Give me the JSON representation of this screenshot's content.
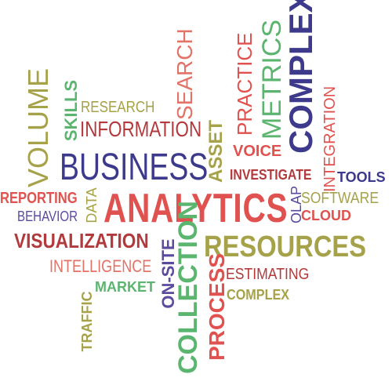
{
  "words": {
    "analytics": "ANALYTICS",
    "business": "BUSINESS",
    "complex_large": "COMPLEX",
    "complex_small": "COMPLEX",
    "resources": "RESOURCES",
    "visualization": "VISUALIZATION",
    "collection": "COLLECTION",
    "information": "INFORMATION",
    "metrics": "METRICS",
    "volume": "VOLUME",
    "practice": "PRACTICE",
    "search": "SEARCH",
    "process": "PROCESS",
    "intelligence": "INTELLIGENCE",
    "asset": "ASSET",
    "voice": "VOICE",
    "investigate": "INVESTIGATE",
    "integration": "INTEGRATION",
    "tools": "TOOLS",
    "software": "SOFTWARE",
    "cloud": "CLOUD",
    "olap": "OLAP",
    "reporting": "REPORTING",
    "behavior": "BEHAVIOR",
    "data": "DATA",
    "research": "RESEARCH",
    "skills": "SKILLS",
    "on_site": "ON-SITE",
    "estimating": "ESTIMATING",
    "market": "MARKET",
    "traffic": "TRAFFIC"
  },
  "colors": {
    "red": "#E0524F",
    "crimson": "#B23A3D",
    "navy": "#3D3A8C",
    "olive": "#A6A24A",
    "green": "#5BB56F",
    "purple": "#5B4A9E",
    "salmon": "#E27367"
  }
}
